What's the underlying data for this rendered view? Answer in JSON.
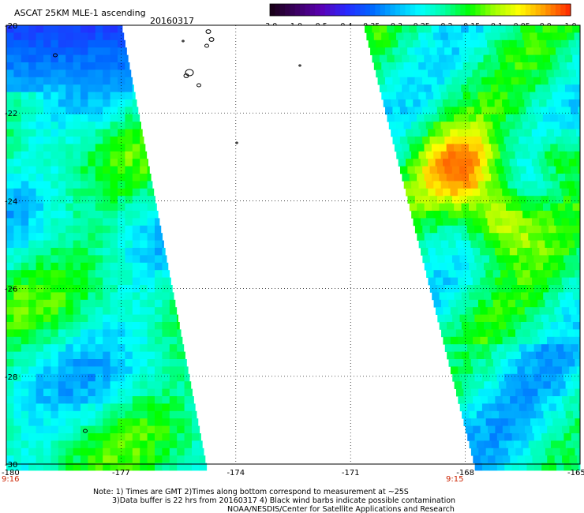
{
  "header": {
    "product": "ASCAT 25KM MLE-1 ascending",
    "date": "20160317"
  },
  "colorbar": {
    "labels": [
      "-3.0",
      "-1.0",
      "-0.5",
      "-0.4",
      "-0.35",
      "-0.3",
      "-0.25",
      "-0.2",
      "-0.15",
      "-0.1",
      "-0.05",
      "0.0",
      "1.0"
    ],
    "colors": [
      "#1a001a",
      "#3c0064",
      "#5a00b4",
      "#2828ff",
      "#0064ff",
      "#00b4ff",
      "#00ffff",
      "#00ffa0",
      "#00ff00",
      "#a0ff00",
      "#ffff00",
      "#ffa000",
      "#ff3000"
    ]
  },
  "axes": {
    "lon_labels": [
      "-180",
      "-177",
      "-174",
      "-171",
      "-168",
      "-165"
    ],
    "lat_labels": [
      "-20",
      "-22",
      "-24",
      "-26",
      "-28",
      "-30"
    ],
    "lon_values": [
      -180,
      -177,
      -174,
      -171,
      -168,
      -165
    ],
    "lat_values": [
      -20,
      -22,
      -24,
      -26,
      -28,
      -30
    ]
  },
  "times": {
    "left": "9:16",
    "right": "9:15",
    "color": "#cc2200"
  },
  "notes": {
    "line1": "Note: 1) Times are GMT 2)Times along bottom correspond to measurement at ~25S",
    "line2": "3)Data buffer is 22 hrs from 20160317 4) Black wind barbs indicate possible contamination",
    "line3": "NOAA/NESDIS/Center for Satellite Applications and Research"
  }
}
